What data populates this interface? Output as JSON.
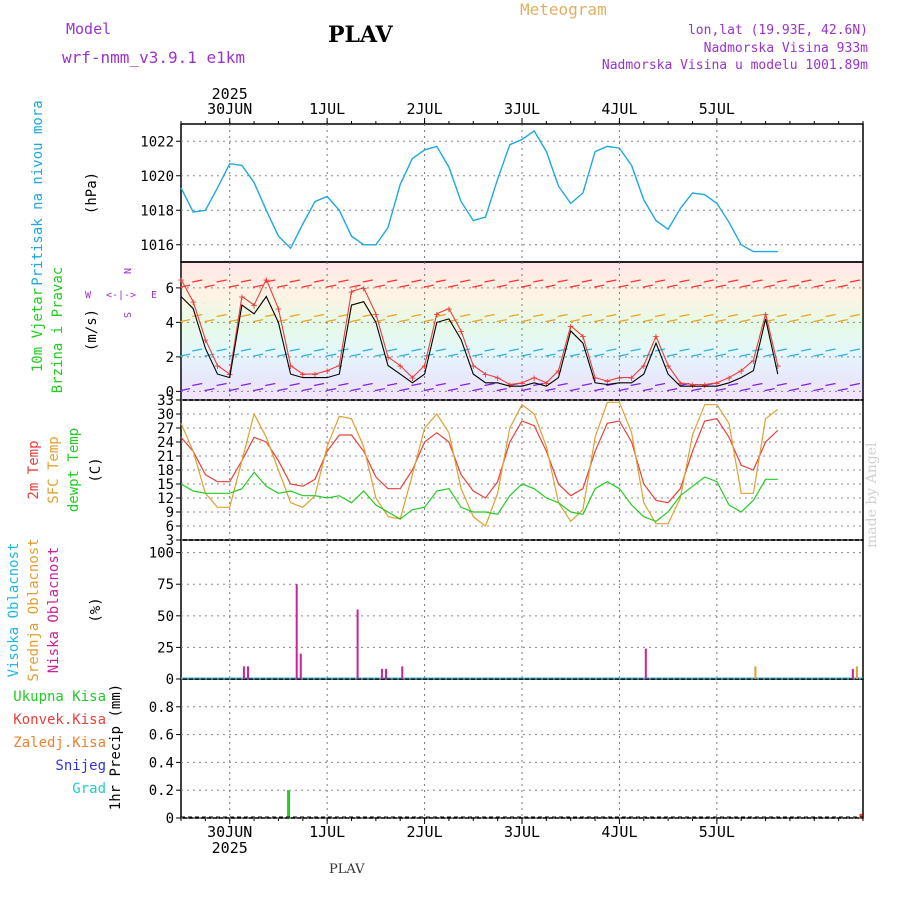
{
  "header": {
    "model_label": "Model",
    "model_name": "wrf-nmm_v3.9.1 e1km",
    "station": "PLAV",
    "product": "Meteogram",
    "lonlat": "lon,lat (19.93E, 42.6N)",
    "elevation": "Nadmorska Visina 933m",
    "model_elevation": "Nadmorska Visina u modelu 1001.89m",
    "footer_station": "PLAV",
    "credit": "made by Angel"
  },
  "time_axis": {
    "year": "2025",
    "days": [
      "30JUN",
      "1JUL",
      "2JUL",
      "3JUL",
      "4JUL",
      "5JUL"
    ]
  },
  "colors": {
    "pressure": "#1fa8e0",
    "temp2m": "#e8403a",
    "sfc_temp": "#e0a030",
    "dewpt": "#22cc22",
    "wind_speed": "#000000",
    "gust": "#e8403a",
    "high_cloud": "#22b8e0",
    "mid_cloud": "#e0a030",
    "low_cloud": "#cc2299",
    "total_precip": "#22cc22",
    "conv_precip": "#e8403a",
    "frozen_precip": "#f08030",
    "snow": "#3333cc",
    "hail": "#22cccc",
    "model_text": "#9933cc"
  },
  "chart_data": [
    {
      "type": "line",
      "panel": "pressure",
      "ylabel": "Pritisak na nivou mora",
      "unit": "(hPa)",
      "ylim": [
        1015,
        1023
      ],
      "yticks": [
        1016,
        1018,
        1020,
        1022
      ],
      "x_hours": [
        0,
        3,
        6,
        9,
        12,
        15,
        18,
        21,
        24,
        27,
        30,
        33,
        36,
        39,
        42,
        45,
        48,
        51,
        54,
        57,
        60,
        63,
        66,
        69,
        72,
        75,
        78,
        81,
        84,
        87,
        90,
        93,
        96,
        99,
        102,
        105,
        108,
        111,
        114,
        117,
        120,
        123,
        126,
        129,
        132,
        135,
        138,
        141,
        144,
        147
      ],
      "series": [
        {
          "name": "Pritisak na nivou mora",
          "values": [
            1019.3,
            1017.9,
            1018.0,
            1019.3,
            1020.7,
            1020.6,
            1019.6,
            1018.0,
            1016.5,
            1015.8,
            1017.2,
            1018.5,
            1018.8,
            1018.0,
            1016.5,
            1016.0,
            1016.0,
            1017.0,
            1019.5,
            1021.0,
            1021.5,
            1021.7,
            1020.5,
            1018.5,
            1017.4,
            1017.6,
            1019.8,
            1021.8,
            1022.1,
            1022.6,
            1021.4,
            1019.4,
            1018.4,
            1019.0,
            1021.4,
            1021.7,
            1021.6,
            1020.6,
            1018.6,
            1017.4,
            1016.9,
            1018.1,
            1019.0,
            1018.9,
            1018.4,
            1017.3,
            1016.0,
            1015.6,
            1015.6,
            1015.6
          ]
        }
      ]
    },
    {
      "type": "line",
      "panel": "wind",
      "ylabel": "10m Vjetar",
      "ylabel2": "Brzina i Pravac",
      "unit": "(m/s)",
      "compass": {
        "north": "N",
        "east": "E",
        "west": "W",
        "south": "S"
      },
      "ylim": [
        -0.5,
        7.5
      ],
      "yticks": [
        0,
        2,
        4,
        6
      ],
      "x_hours": [
        0,
        3,
        6,
        9,
        12,
        15,
        18,
        21,
        24,
        27,
        30,
        33,
        36,
        39,
        42,
        45,
        48,
        51,
        54,
        57,
        60,
        63,
        66,
        69,
        72,
        75,
        78,
        81,
        84,
        87,
        90,
        93,
        96,
        99,
        102,
        105,
        108,
        111,
        114,
        117,
        120,
        123,
        126,
        129,
        132,
        135,
        138,
        141,
        144,
        147
      ],
      "series": [
        {
          "name": "Brzina",
          "values": [
            5.5,
            4.8,
            2.5,
            1.0,
            0.8,
            5.0,
            4.5,
            5.5,
            4.0,
            1.0,
            0.8,
            0.8,
            0.8,
            1.0,
            5.0,
            5.2,
            4.0,
            1.5,
            1.0,
            0.5,
            1.0,
            4.0,
            4.2,
            3.0,
            1.0,
            0.5,
            0.5,
            0.3,
            0.3,
            0.5,
            0.3,
            0.8,
            3.5,
            2.8,
            0.5,
            0.4,
            0.5,
            0.5,
            1.0,
            2.8,
            1.0,
            0.3,
            0.3,
            0.3,
            0.3,
            0.5,
            0.8,
            1.2,
            4.2,
            1.0
          ]
        },
        {
          "name": "Udari",
          "values": [
            6.5,
            5.2,
            3.0,
            1.5,
            1.0,
            5.5,
            5.0,
            6.5,
            4.8,
            1.5,
            1.0,
            1.0,
            1.2,
            1.5,
            5.8,
            6.0,
            4.5,
            2.0,
            1.5,
            0.8,
            1.5,
            4.5,
            4.8,
            3.5,
            1.5,
            1.0,
            0.8,
            0.4,
            0.5,
            0.8,
            0.5,
            1.2,
            3.8,
            3.2,
            0.8,
            0.6,
            0.8,
            0.8,
            1.5,
            3.2,
            1.5,
            0.5,
            0.4,
            0.4,
            0.5,
            0.8,
            1.2,
            1.8,
            4.5,
            1.5
          ]
        }
      ]
    },
    {
      "type": "line",
      "panel": "temperature",
      "ylabels": [
        "2m Temp",
        "SFC Temp",
        "dewpt Temp"
      ],
      "unit": "(C)",
      "ylim": [
        3,
        33
      ],
      "yticks": [
        3,
        6,
        9,
        12,
        15,
        18,
        21,
        24,
        27,
        30,
        33
      ],
      "x_hours": [
        0,
        3,
        6,
        9,
        12,
        15,
        18,
        21,
        24,
        27,
        30,
        33,
        36,
        39,
        42,
        45,
        48,
        51,
        54,
        57,
        60,
        63,
        66,
        69,
        72,
        75,
        78,
        81,
        84,
        87,
        90,
        93,
        96,
        99,
        102,
        105,
        108,
        111,
        114,
        117,
        120,
        123,
        126,
        129,
        132,
        135,
        138,
        141,
        144,
        147
      ],
      "series": [
        {
          "name": "2m Temp",
          "values": [
            25.0,
            22.0,
            17.0,
            15.5,
            15.5,
            20.0,
            25.0,
            24.0,
            20.0,
            15.0,
            14.5,
            16.0,
            22.0,
            25.5,
            25.5,
            22.0,
            16.5,
            14.0,
            14.0,
            18.0,
            24.0,
            26.0,
            24.0,
            17.0,
            13.5,
            12.0,
            15.5,
            24.0,
            28.5,
            27.5,
            22.0,
            15.0,
            12.5,
            14.0,
            22.0,
            28.0,
            28.5,
            24.0,
            15.0,
            11.5,
            11.0,
            14.0,
            22.0,
            28.5,
            29.0,
            25.0,
            19.0,
            18.0,
            24.0,
            26.5
          ]
        },
        {
          "name": "SFC Temp",
          "values": [
            28.0,
            22.0,
            13.0,
            10.0,
            10.0,
            20.0,
            30.0,
            25.0,
            18.0,
            11.0,
            10.0,
            12.5,
            23.0,
            29.5,
            29.0,
            23.0,
            12.0,
            8.0,
            7.5,
            17.0,
            27.0,
            30.0,
            26.0,
            14.0,
            8.0,
            6.0,
            13.0,
            27.0,
            32.0,
            30.0,
            23.0,
            11.0,
            7.0,
            9.5,
            25.0,
            32.5,
            32.5,
            26.0,
            11.0,
            6.5,
            6.5,
            12.0,
            25.5,
            32.0,
            32.0,
            28.0,
            13.0,
            13.0,
            29.0,
            31.0
          ]
        },
        {
          "name": "dewpt Temp",
          "values": [
            15.0,
            13.5,
            13.0,
            13.0,
            13.0,
            14.0,
            17.5,
            14.5,
            13.0,
            13.5,
            12.5,
            12.5,
            12.0,
            12.5,
            11.0,
            13.5,
            10.5,
            9.0,
            7.5,
            9.5,
            10.0,
            13.5,
            14.0,
            10.0,
            9.0,
            9.0,
            8.5,
            12.5,
            15.0,
            14.0,
            12.0,
            11.0,
            9.0,
            8.5,
            14.0,
            15.5,
            14.0,
            10.5,
            8.0,
            7.0,
            9.0,
            12.5,
            14.5,
            16.5,
            15.5,
            10.5,
            9.0,
            11.5,
            16.0,
            16.0
          ]
        }
      ]
    },
    {
      "type": "bar",
      "panel": "cloud",
      "ylabels": [
        "Visoka Oblacnost",
        "Srednja Oblacnost",
        "Niska Oblacnost"
      ],
      "unit": "(%)",
      "ylim": [
        0,
        100
      ],
      "yticks": [
        0,
        25,
        50,
        75,
        100
      ],
      "series": [
        {
          "name": "Niska Oblacnost",
          "x_hours": [
            15.5,
            16.5,
            28.5,
            29.5,
            43.5,
            49.5,
            50.5,
            54.5,
            114.5,
            165.5
          ],
          "values": [
            10,
            10,
            75,
            20,
            55,
            8,
            8,
            10,
            24,
            8
          ]
        },
        {
          "name": "Srednja Oblacnost",
          "x_hours": [
            141.5,
            166.5
          ],
          "values": [
            10,
            10
          ]
        },
        {
          "name": "Visoka Oblacnost",
          "x_hours": [],
          "values": []
        }
      ]
    },
    {
      "type": "bar",
      "panel": "precip",
      "ylabels": [
        "Ukupna Kisa",
        "Konvek.Kisa",
        "Zaledj.Kisa",
        "Snijeg",
        "Grad"
      ],
      "unit": "1hr Precip (mm)",
      "ylim": [
        0,
        1
      ],
      "yticks": [
        0,
        0.2,
        0.4,
        0.6,
        0.8
      ],
      "series": [
        {
          "name": "Ukupna Kisa",
          "x_hours": [
            26.5
          ],
          "values": [
            0.2
          ]
        },
        {
          "name": "Konvek.Kisa",
          "x_hours": [
            167.5
          ],
          "values": [
            0.03
          ]
        }
      ]
    }
  ]
}
